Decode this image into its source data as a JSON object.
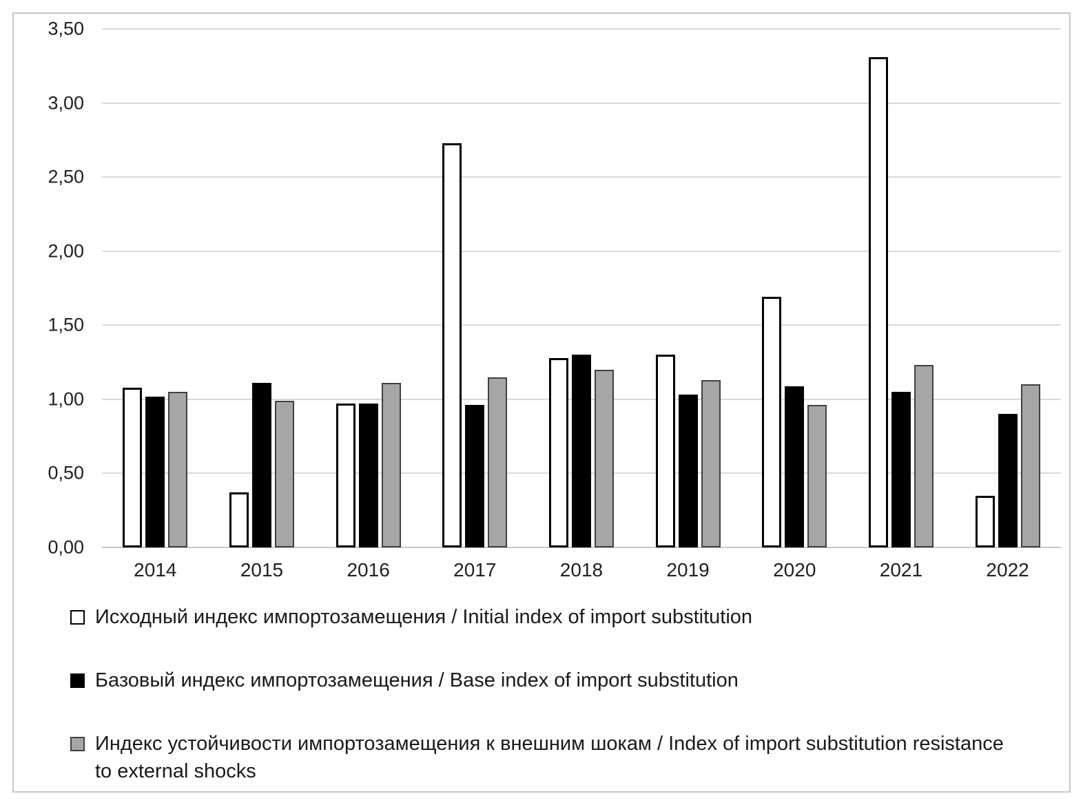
{
  "chart_data": {
    "type": "bar",
    "categories": [
      "2014",
      "2015",
      "2016",
      "2017",
      "2018",
      "2019",
      "2020",
      "2021",
      "2022"
    ],
    "series": [
      {
        "name": "Исходный индекс импортозамещения / Initial index of import substitution",
        "color": "#ffffff",
        "border": "#000000",
        "values": [
          1.08,
          0.37,
          0.97,
          2.73,
          1.28,
          1.3,
          1.69,
          3.31,
          0.35
        ]
      },
      {
        "name": "Базовый индекс импортозамещения / Base index of import substitution",
        "color": "#000000",
        "border": "#000000",
        "values": [
          1.02,
          1.11,
          0.97,
          0.96,
          1.3,
          1.03,
          1.09,
          1.05,
          0.9
        ]
      },
      {
        "name": "Индекс устойчивости импортозамещения к внешним шокам / Index of import substitution resistance to external shocks",
        "color": "#a6a6a6",
        "border": "#404040",
        "values": [
          1.05,
          0.99,
          1.11,
          1.15,
          1.2,
          1.13,
          0.96,
          1.23,
          1.1
        ]
      }
    ],
    "title": "",
    "xlabel": "",
    "ylabel": "",
    "ylim": [
      0,
      3.5
    ],
    "ytick_step": 0.5,
    "yticks_top_to_bottom": [
      "3,50",
      "3,00",
      "2,50",
      "2,00",
      "1,50",
      "1,00",
      "0,50",
      "0,00"
    ],
    "grid": true,
    "legend_position": "bottom",
    "gridline_color": "#d9d9d9"
  }
}
